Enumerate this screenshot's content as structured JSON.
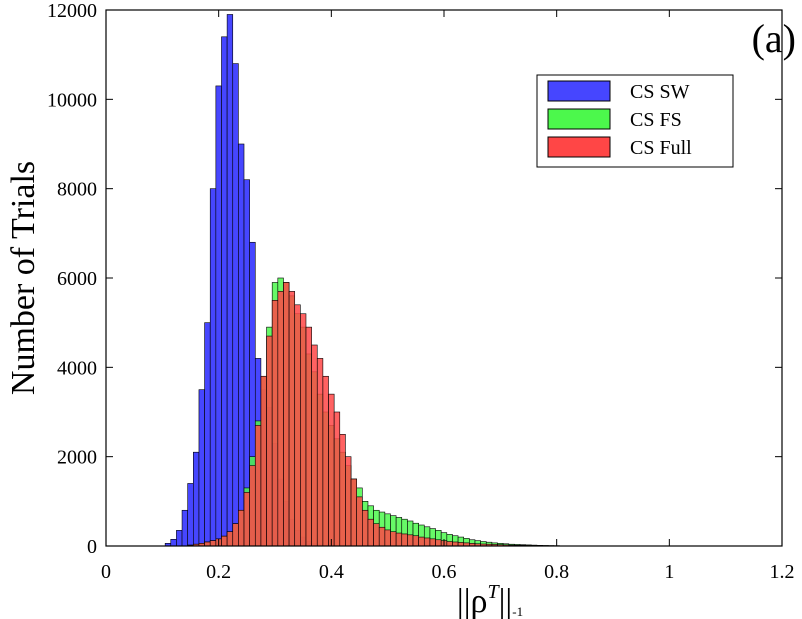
{
  "chart_data": {
    "type": "bar",
    "panel_label": "(a)",
    "ylabel": "Number of Trials",
    "xlabel": "||ρ",
    "xlabel_sup": "T",
    "xlabel_tail": "||",
    "xlabel_sub": "-1",
    "xlim": [
      0,
      1.2
    ],
    "ylim": [
      0,
      12000
    ],
    "xticks": [
      0,
      0.2,
      0.4,
      0.6,
      0.8,
      1,
      1.2
    ],
    "xtick_labels": [
      "0",
      "0.2",
      "0.4",
      "0.6",
      "0.8",
      "1",
      "1.2"
    ],
    "yticks": [
      0,
      2000,
      4000,
      6000,
      8000,
      10000,
      12000
    ],
    "ytick_labels": [
      "0",
      "2000",
      "4000",
      "6000",
      "8000",
      "10000",
      "12000"
    ],
    "bin_width": 0.01,
    "legend": {
      "placement": "top-right"
    },
    "grid": false,
    "series": [
      {
        "name": "CS SW",
        "color": "#4646ff",
        "opacity": 1.0,
        "bins": [
          [
            0.11,
            60
          ],
          [
            0.12,
            150
          ],
          [
            0.13,
            350
          ],
          [
            0.14,
            800
          ],
          [
            0.15,
            1400
          ],
          [
            0.16,
            2100
          ],
          [
            0.17,
            3500
          ],
          [
            0.18,
            5000
          ],
          [
            0.19,
            8000
          ],
          [
            0.2,
            10300
          ],
          [
            0.21,
            11400
          ],
          [
            0.22,
            11900
          ],
          [
            0.23,
            10800
          ],
          [
            0.24,
            9000
          ],
          [
            0.25,
            8200
          ],
          [
            0.26,
            6800
          ],
          [
            0.27,
            4200
          ],
          [
            0.28,
            3500
          ],
          [
            0.29,
            3100
          ],
          [
            0.3,
            2300
          ],
          [
            0.31,
            1500
          ],
          [
            0.32,
            1000
          ],
          [
            0.33,
            600
          ],
          [
            0.34,
            350
          ],
          [
            0.35,
            200
          ],
          [
            0.36,
            100
          ],
          [
            0.37,
            50
          ],
          [
            0.38,
            25
          ]
        ]
      },
      {
        "name": "CS FS",
        "color": "#4cf84c",
        "opacity": 0.85,
        "bins": [
          [
            0.15,
            20
          ],
          [
            0.16,
            40
          ],
          [
            0.17,
            60
          ],
          [
            0.18,
            90
          ],
          [
            0.19,
            120
          ],
          [
            0.2,
            160
          ],
          [
            0.21,
            220
          ],
          [
            0.22,
            320
          ],
          [
            0.23,
            500
          ],
          [
            0.24,
            800
          ],
          [
            0.25,
            1300
          ],
          [
            0.26,
            2000
          ],
          [
            0.27,
            2800
          ],
          [
            0.28,
            3800
          ],
          [
            0.29,
            4900
          ],
          [
            0.3,
            5900
          ],
          [
            0.31,
            6000
          ],
          [
            0.32,
            5900
          ],
          [
            0.33,
            5600
          ],
          [
            0.34,
            5200
          ],
          [
            0.35,
            4900
          ],
          [
            0.36,
            4300
          ],
          [
            0.37,
            3900
          ],
          [
            0.38,
            3400
          ],
          [
            0.39,
            3000
          ],
          [
            0.4,
            2700
          ],
          [
            0.41,
            2400
          ],
          [
            0.42,
            2100
          ],
          [
            0.43,
            1800
          ],
          [
            0.44,
            1500
          ],
          [
            0.45,
            1300
          ],
          [
            0.46,
            1000
          ],
          [
            0.47,
            900
          ],
          [
            0.48,
            800
          ],
          [
            0.49,
            760
          ],
          [
            0.5,
            720
          ],
          [
            0.51,
            680
          ],
          [
            0.52,
            640
          ],
          [
            0.53,
            600
          ],
          [
            0.54,
            560
          ],
          [
            0.55,
            510
          ],
          [
            0.56,
            470
          ],
          [
            0.57,
            430
          ],
          [
            0.58,
            390
          ],
          [
            0.59,
            350
          ],
          [
            0.6,
            300
          ],
          [
            0.61,
            260
          ],
          [
            0.62,
            230
          ],
          [
            0.63,
            200
          ],
          [
            0.64,
            170
          ],
          [
            0.65,
            140
          ],
          [
            0.66,
            120
          ],
          [
            0.67,
            100
          ],
          [
            0.68,
            85
          ],
          [
            0.69,
            70
          ],
          [
            0.7,
            60
          ],
          [
            0.71,
            50
          ],
          [
            0.72,
            40
          ],
          [
            0.73,
            35
          ],
          [
            0.74,
            30
          ],
          [
            0.75,
            25
          ],
          [
            0.76,
            20
          ],
          [
            0.77,
            15
          ],
          [
            0.78,
            12
          ],
          [
            0.79,
            10
          ],
          [
            0.8,
            8
          ]
        ]
      },
      {
        "name": "CS Full",
        "color": "#ff4646",
        "opacity": 0.85,
        "bins": [
          [
            0.15,
            20
          ],
          [
            0.16,
            40
          ],
          [
            0.17,
            60
          ],
          [
            0.18,
            90
          ],
          [
            0.19,
            120
          ],
          [
            0.2,
            160
          ],
          [
            0.21,
            220
          ],
          [
            0.22,
            320
          ],
          [
            0.23,
            500
          ],
          [
            0.24,
            800
          ],
          [
            0.25,
            1200
          ],
          [
            0.26,
            1800
          ],
          [
            0.27,
            2700
          ],
          [
            0.28,
            3800
          ],
          [
            0.29,
            4700
          ],
          [
            0.3,
            5500
          ],
          [
            0.31,
            5700
          ],
          [
            0.32,
            5900
          ],
          [
            0.33,
            5700
          ],
          [
            0.34,
            5400
          ],
          [
            0.35,
            5200
          ],
          [
            0.36,
            4900
          ],
          [
            0.37,
            4500
          ],
          [
            0.38,
            4200
          ],
          [
            0.39,
            3800
          ],
          [
            0.4,
            3400
          ],
          [
            0.41,
            3000
          ],
          [
            0.42,
            2500
          ],
          [
            0.43,
            2000
          ],
          [
            0.44,
            1500
          ],
          [
            0.45,
            1100
          ],
          [
            0.46,
            800
          ],
          [
            0.47,
            600
          ],
          [
            0.48,
            500
          ],
          [
            0.49,
            420
          ],
          [
            0.5,
            360
          ],
          [
            0.51,
            320
          ],
          [
            0.52,
            290
          ],
          [
            0.53,
            270
          ],
          [
            0.54,
            250
          ],
          [
            0.55,
            230
          ],
          [
            0.56,
            200
          ],
          [
            0.57,
            180
          ],
          [
            0.58,
            160
          ],
          [
            0.59,
            140
          ],
          [
            0.6,
            120
          ],
          [
            0.61,
            100
          ],
          [
            0.62,
            90
          ],
          [
            0.63,
            80
          ],
          [
            0.64,
            70
          ],
          [
            0.65,
            60
          ],
          [
            0.66,
            50
          ],
          [
            0.67,
            45
          ],
          [
            0.68,
            40
          ],
          [
            0.69,
            35
          ],
          [
            0.7,
            30
          ],
          [
            0.71,
            25
          ],
          [
            0.72,
            20
          ],
          [
            0.73,
            18
          ],
          [
            0.74,
            16
          ],
          [
            0.75,
            14
          ],
          [
            0.76,
            12
          ],
          [
            0.77,
            10
          ],
          [
            0.78,
            8
          ],
          [
            0.79,
            6
          ],
          [
            0.8,
            5
          ]
        ]
      }
    ]
  }
}
